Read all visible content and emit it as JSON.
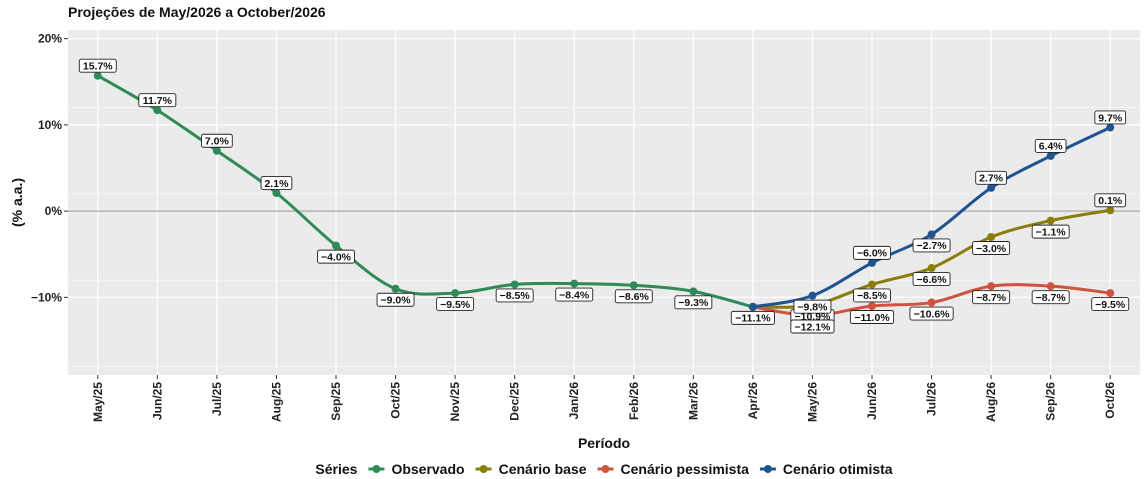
{
  "chart_data": {
    "type": "line",
    "title": "Projeções de May/2026 a October/2026",
    "xlabel": "Período",
    "ylabel": "(% a.a.)",
    "categories": [
      "May/25",
      "Jun/25",
      "Jul/25",
      "Aug/25",
      "Sep/25",
      "Oct/25",
      "Nov/25",
      "Dec/25",
      "Jan/26",
      "Feb/26",
      "Mar/26",
      "Apr/26",
      "May/26",
      "Jun/26",
      "Jul/26",
      "Aug/26",
      "Sep/26",
      "Oct/26"
    ],
    "ylim": [
      -19,
      21
    ],
    "yticks": [
      20,
      10,
      0,
      -10
    ],
    "ytick_labels": [
      "20%",
      "10%",
      "0%",
      "−10%"
    ],
    "reference_line": 0,
    "grid": true,
    "legend_title": "Séries",
    "legend_position": "bottom",
    "series": [
      {
        "name": "Observado",
        "color": "#2E8B57",
        "x": [
          "May/25",
          "Jun/25",
          "Jul/25",
          "Aug/25",
          "Sep/25",
          "Oct/25",
          "Nov/25",
          "Dec/25",
          "Jan/26",
          "Feb/26",
          "Mar/26",
          "Apr/26"
        ],
        "values": [
          15.7,
          11.7,
          7.0,
          2.1,
          -4.0,
          -9.0,
          -9.5,
          -8.5,
          -8.4,
          -8.6,
          -9.3,
          -11.1
        ],
        "labels": [
          "15.7%",
          "11.7%",
          "7.0%",
          "2.1%",
          "−4.0%",
          "−9.0%",
          "−9.5%",
          "−8.5%",
          "−8.4%",
          "−8.6%",
          "−9.3%",
          "−11.1%"
        ],
        "label_pos": [
          "above",
          "above",
          "above",
          "above",
          "below",
          "below",
          "below",
          "below",
          "below",
          "below",
          "below",
          "below"
        ]
      },
      {
        "name": "Cenário base",
        "color": "#8B7D0A",
        "x": [
          "Apr/26",
          "May/26",
          "Jun/26",
          "Jul/26",
          "Aug/26",
          "Sep/26",
          "Oct/26"
        ],
        "values": [
          -11.1,
          -10.9,
          -8.5,
          -6.6,
          -3.0,
          -1.1,
          0.1
        ],
        "labels": [
          "",
          "−10.9%",
          "−8.5%",
          "−6.6%",
          "−3.0%",
          "−1.1%",
          "0.1%"
        ],
        "label_pos": [
          "none",
          "below",
          "below",
          "below",
          "below",
          "below",
          "above"
        ]
      },
      {
        "name": "Cenário pessimista",
        "color": "#D0533F",
        "x": [
          "Apr/26",
          "May/26",
          "Jun/26",
          "Jul/26",
          "Aug/26",
          "Sep/26",
          "Oct/26"
        ],
        "values": [
          -11.1,
          -12.1,
          -11.0,
          -10.6,
          -8.7,
          -8.7,
          -9.5
        ],
        "labels": [
          "",
          "−12.1%",
          "−11.0%",
          "−10.6%",
          "−8.7%",
          "−8.7%",
          "−9.5%"
        ],
        "label_pos": [
          "none",
          "below",
          "below",
          "below",
          "below",
          "below",
          "below"
        ]
      },
      {
        "name": "Cenário otimista",
        "color": "#1F5490",
        "x": [
          "Apr/26",
          "May/26",
          "Jun/26",
          "Jul/26",
          "Aug/26",
          "Sep/26",
          "Oct/26"
        ],
        "values": [
          -11.1,
          -9.8,
          -6.0,
          -2.7,
          2.7,
          6.4,
          9.7
        ],
        "labels": [
          "",
          "−9.8%",
          "−6.0%",
          "−2.7%",
          "2.7%",
          "6.4%",
          "9.7%"
        ],
        "label_pos": [
          "none",
          "below",
          "above",
          "below",
          "above",
          "above",
          "above"
        ]
      }
    ]
  }
}
